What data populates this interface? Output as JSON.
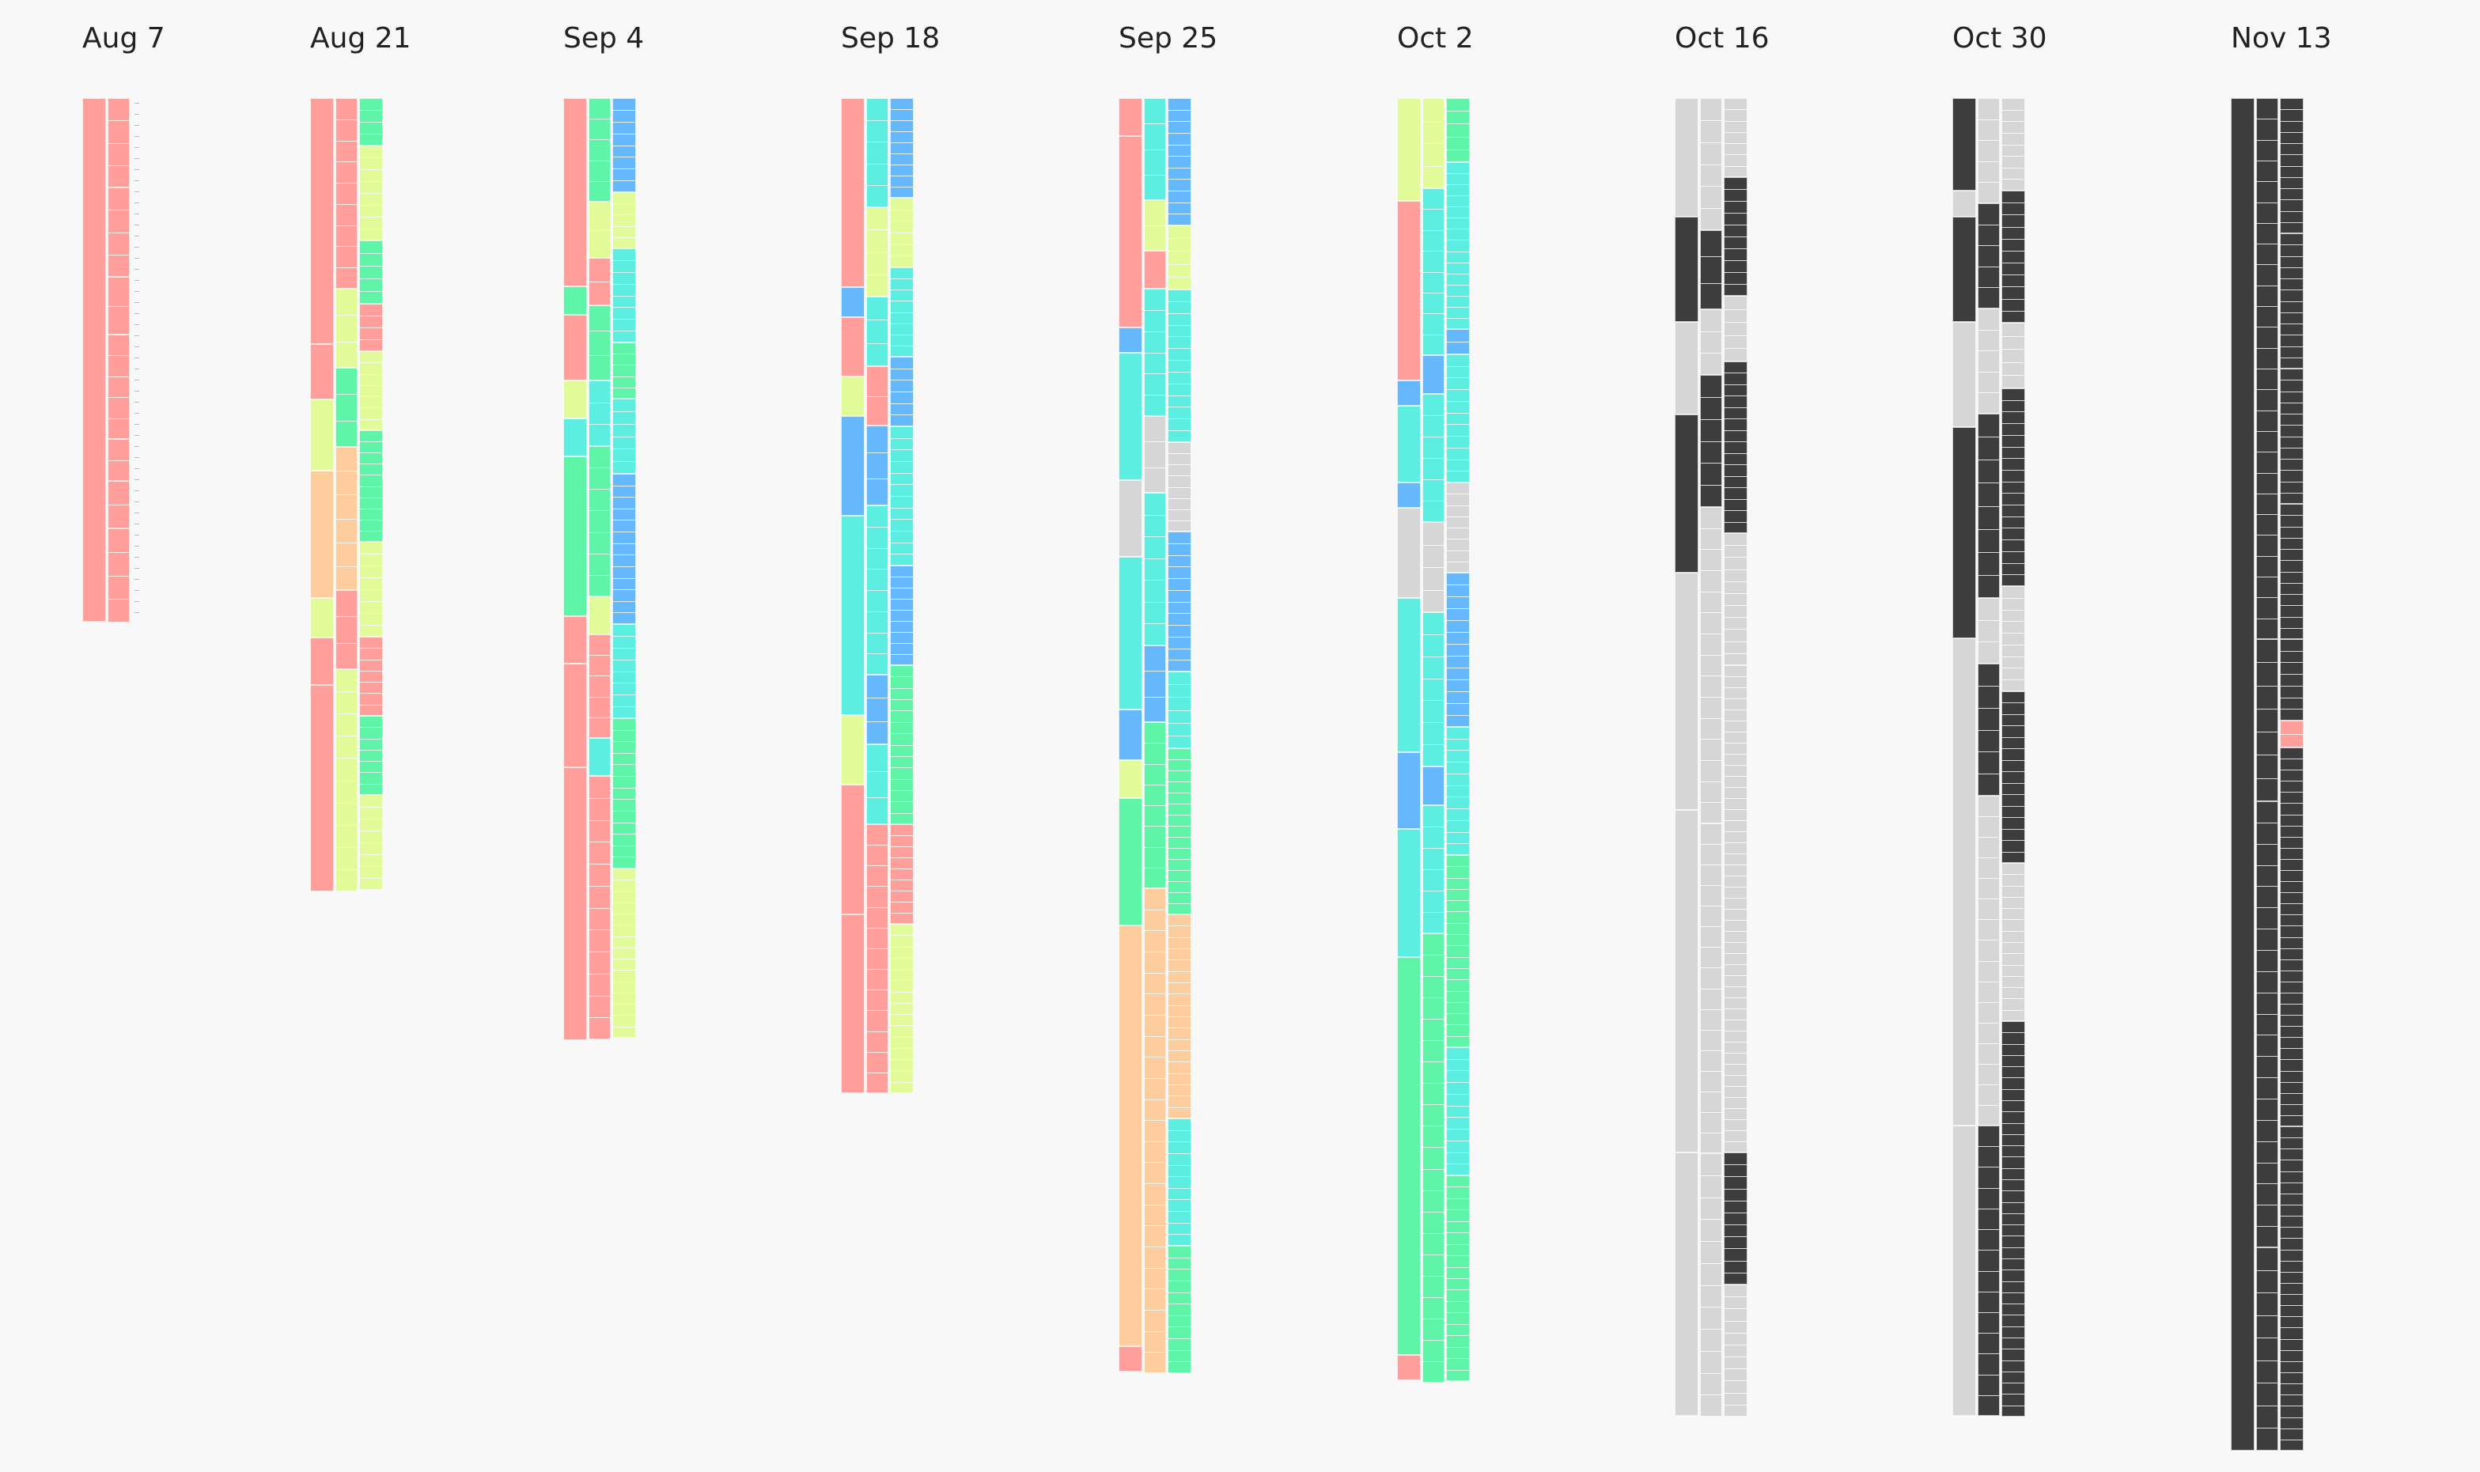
{
  "palette": {
    "red": "#ff9e9b",
    "cyan": "#5deee2",
    "green": "#5ff5a8",
    "blue": "#64b8fb",
    "yellow": "#e2fb99",
    "orange": "#fdcd9d",
    "gray": "#d6d6d6",
    "dark": "#3d3d3d"
  },
  "snapshots": [
    {
      "date": "Aug 7",
      "segments": [
        [
          {
            "c": "red",
            "s": 1
          }
        ],
        [
          {
            "c": "red",
            "s": 0.17
          },
          {
            "c": "red",
            "s": 0.17
          },
          {
            "c": "red",
            "s": 0.11
          },
          {
            "c": "red",
            "s": 0.2
          },
          {
            "c": "red",
            "s": 0.08
          },
          {
            "c": "red",
            "s": 0.09
          },
          {
            "c": "red",
            "s": 0.18
          }
        ],
        [
          {
            "c": "none",
            "s": 1
          }
        ]
      ]
    },
    {
      "date": "Aug 21",
      "segments": [
        [
          {
            "c": "red",
            "s": 0.31
          },
          {
            "c": "red",
            "s": 0.07
          },
          {
            "c": "yellow",
            "s": 0.09
          },
          {
            "c": "orange",
            "s": 0.16
          },
          {
            "c": "yellow",
            "s": 0.05
          },
          {
            "c": "red",
            "s": 0.06
          },
          {
            "c": "red",
            "s": 0.26
          }
        ],
        [
          {
            "c": "red",
            "s": 0.24
          },
          {
            "c": "yellow",
            "s": 0.1
          },
          {
            "c": "green",
            "s": 0.1
          },
          {
            "c": "orange",
            "s": 0.18
          },
          {
            "c": "red",
            "s": 0.1
          },
          {
            "c": "yellow",
            "s": 0.28
          }
        ],
        [
          {
            "c": "green",
            "s": 0.06
          },
          {
            "c": "yellow",
            "s": 0.12
          },
          {
            "c": "green",
            "s": 0.08
          },
          {
            "c": "red",
            "s": 0.06
          },
          {
            "c": "yellow",
            "s": 0.1
          },
          {
            "c": "green",
            "s": 0.14
          },
          {
            "c": "yellow",
            "s": 0.12
          },
          {
            "c": "red",
            "s": 0.1
          },
          {
            "c": "green",
            "s": 0.1
          },
          {
            "c": "yellow",
            "s": 0.12
          }
        ]
      ]
    },
    {
      "date": "Sep 4",
      "segments": [
        [
          {
            "c": "red",
            "s": 0.2
          },
          {
            "c": "green",
            "s": 0.03
          },
          {
            "c": "red",
            "s": 0.07
          },
          {
            "c": "yellow",
            "s": 0.04
          },
          {
            "c": "cyan",
            "s": 0.04
          },
          {
            "c": "green",
            "s": 0.17
          },
          {
            "c": "red",
            "s": 0.05
          },
          {
            "c": "red",
            "s": 0.11
          },
          {
            "c": "red",
            "s": 0.29
          }
        ],
        [
          {
            "c": "green",
            "s": 0.11
          },
          {
            "c": "yellow",
            "s": 0.06
          },
          {
            "c": "red",
            "s": 0.05
          },
          {
            "c": "green",
            "s": 0.08
          },
          {
            "c": "cyan",
            "s": 0.07
          },
          {
            "c": "green",
            "s": 0.16
          },
          {
            "c": "yellow",
            "s": 0.04
          },
          {
            "c": "red",
            "s": 0.11
          },
          {
            "c": "cyan",
            "s": 0.04
          },
          {
            "c": "red",
            "s": 0.28
          }
        ],
        [
          {
            "c": "blue",
            "s": 0.1
          },
          {
            "c": "yellow",
            "s": 0.06
          },
          {
            "c": "cyan",
            "s": 0.1
          },
          {
            "c": "green",
            "s": 0.06
          },
          {
            "c": "cyan",
            "s": 0.08
          },
          {
            "c": "blue",
            "s": 0.16
          },
          {
            "c": "cyan",
            "s": 0.1
          },
          {
            "c": "green",
            "s": 0.16
          },
          {
            "c": "yellow",
            "s": 0.18
          }
        ]
      ]
    },
    {
      "date": "Sep 18",
      "segments": [
        [
          {
            "c": "red",
            "s": 0.19
          },
          {
            "c": "blue",
            "s": 0.03
          },
          {
            "c": "red",
            "s": 0.06
          },
          {
            "c": "yellow",
            "s": 0.04
          },
          {
            "c": "blue",
            "s": 0.1
          },
          {
            "c": "cyan",
            "s": 0.2
          },
          {
            "c": "yellow",
            "s": 0.07
          },
          {
            "c": "red",
            "s": 0.13
          },
          {
            "c": "red",
            "s": 0.18
          }
        ],
        [
          {
            "c": "cyan",
            "s": 0.11
          },
          {
            "c": "yellow",
            "s": 0.09
          },
          {
            "c": "cyan",
            "s": 0.07
          },
          {
            "c": "red",
            "s": 0.06
          },
          {
            "c": "blue",
            "s": 0.08
          },
          {
            "c": "cyan",
            "s": 0.17
          },
          {
            "c": "blue",
            "s": 0.07
          },
          {
            "c": "cyan",
            "s": 0.08
          },
          {
            "c": "red",
            "s": 0.27
          }
        ],
        [
          {
            "c": "blue",
            "s": 0.1
          },
          {
            "c": "yellow",
            "s": 0.07
          },
          {
            "c": "cyan",
            "s": 0.09
          },
          {
            "c": "blue",
            "s": 0.07
          },
          {
            "c": "cyan",
            "s": 0.14
          },
          {
            "c": "blue",
            "s": 0.1
          },
          {
            "c": "green",
            "s": 0.16
          },
          {
            "c": "red",
            "s": 0.1
          },
          {
            "c": "yellow",
            "s": 0.17
          }
        ]
      ]
    },
    {
      "date": "Sep 25",
      "segments": [
        [
          {
            "c": "red",
            "s": 0.03
          },
          {
            "c": "red",
            "s": 0.15
          },
          {
            "c": "blue",
            "s": 0.02
          },
          {
            "c": "cyan",
            "s": 0.1
          },
          {
            "c": "gray",
            "s": 0.06
          },
          {
            "c": "cyan",
            "s": 0.12
          },
          {
            "c": "blue",
            "s": 0.04
          },
          {
            "c": "yellow",
            "s": 0.03
          },
          {
            "c": "green",
            "s": 0.1
          },
          {
            "c": "orange",
            "s": 0.33
          },
          {
            "c": "red",
            "s": 0.02
          }
        ],
        [
          {
            "c": "cyan",
            "s": 0.08
          },
          {
            "c": "yellow",
            "s": 0.04
          },
          {
            "c": "red",
            "s": 0.03
          },
          {
            "c": "cyan",
            "s": 0.1
          },
          {
            "c": "gray",
            "s": 0.06
          },
          {
            "c": "cyan",
            "s": 0.12
          },
          {
            "c": "blue",
            "s": 0.06
          },
          {
            "c": "green",
            "s": 0.13
          },
          {
            "c": "orange",
            "s": 0.38
          }
        ],
        [
          {
            "c": "blue",
            "s": 0.1
          },
          {
            "c": "yellow",
            "s": 0.05
          },
          {
            "c": "cyan",
            "s": 0.12
          },
          {
            "c": "gray",
            "s": 0.07
          },
          {
            "c": "blue",
            "s": 0.11
          },
          {
            "c": "cyan",
            "s": 0.06
          },
          {
            "c": "green",
            "s": 0.13
          },
          {
            "c": "orange",
            "s": 0.16
          },
          {
            "c": "cyan",
            "s": 0.1
          },
          {
            "c": "green",
            "s": 0.1
          }
        ]
      ]
    },
    {
      "date": "Oct 2",
      "segments": [
        [
          {
            "c": "yellow",
            "s": 0.08
          },
          {
            "c": "red",
            "s": 0.14
          },
          {
            "c": "blue",
            "s": 0.02
          },
          {
            "c": "cyan",
            "s": 0.06
          },
          {
            "c": "blue",
            "s": 0.02
          },
          {
            "c": "gray",
            "s": 0.07
          },
          {
            "c": "cyan",
            "s": 0.12
          },
          {
            "c": "blue",
            "s": 0.06
          },
          {
            "c": "cyan",
            "s": 0.1
          },
          {
            "c": "green",
            "s": 0.31
          },
          {
            "c": "red",
            "s": 0.02
          }
        ],
        [
          {
            "c": "yellow",
            "s": 0.07
          },
          {
            "c": "cyan",
            "s": 0.13
          },
          {
            "c": "blue",
            "s": 0.03
          },
          {
            "c": "cyan",
            "s": 0.1
          },
          {
            "c": "gray",
            "s": 0.07
          },
          {
            "c": "cyan",
            "s": 0.12
          },
          {
            "c": "blue",
            "s": 0.03
          },
          {
            "c": "cyan",
            "s": 0.1
          },
          {
            "c": "green",
            "s": 0.35
          }
        ],
        [
          {
            "c": "green",
            "s": 0.05
          },
          {
            "c": "cyan",
            "s": 0.13
          },
          {
            "c": "blue",
            "s": 0.02
          },
          {
            "c": "cyan",
            "s": 0.1
          },
          {
            "c": "gray",
            "s": 0.07
          },
          {
            "c": "blue",
            "s": 0.12
          },
          {
            "c": "cyan",
            "s": 0.1
          },
          {
            "c": "green",
            "s": 0.15
          },
          {
            "c": "cyan",
            "s": 0.1
          },
          {
            "c": "green",
            "s": 0.16
          }
        ]
      ]
    },
    {
      "date": "Oct 16",
      "segments": [
        [
          {
            "c": "gray",
            "s": 0.09
          },
          {
            "c": "dark",
            "s": 0.08
          },
          {
            "c": "gray",
            "s": 0.07
          },
          {
            "c": "dark",
            "s": 0.12
          },
          {
            "c": "gray",
            "s": 0.18
          },
          {
            "c": "gray",
            "s": 0.26
          },
          {
            "c": "gray",
            "s": 0.2
          }
        ],
        [
          {
            "c": "gray",
            "s": 0.1
          },
          {
            "c": "dark",
            "s": 0.06
          },
          {
            "c": "gray",
            "s": 0.05
          },
          {
            "c": "dark",
            "s": 0.1
          },
          {
            "c": "gray",
            "s": 0.24
          },
          {
            "c": "gray",
            "s": 0.25
          },
          {
            "c": "gray",
            "s": 0.2
          }
        ],
        [
          {
            "c": "gray",
            "s": 0.06
          },
          {
            "c": "dark",
            "s": 0.09
          },
          {
            "c": "gray",
            "s": 0.05
          },
          {
            "c": "dark",
            "s": 0.13
          },
          {
            "c": "gray",
            "s": 0.1
          },
          {
            "c": "gray",
            "s": 0.37
          },
          {
            "c": "dark",
            "s": 0.1
          },
          {
            "c": "gray",
            "s": 0.1
          }
        ]
      ]
    },
    {
      "date": "Oct 30",
      "segments": [
        [
          {
            "c": "dark",
            "s": 0.07
          },
          {
            "c": "gray",
            "s": 0.02
          },
          {
            "c": "dark",
            "s": 0.08
          },
          {
            "c": "gray",
            "s": 0.08
          },
          {
            "c": "dark",
            "s": 0.16
          },
          {
            "c": "gray",
            "s": 0.37
          },
          {
            "c": "gray",
            "s": 0.22
          }
        ],
        [
          {
            "c": "gray",
            "s": 0.08
          },
          {
            "c": "dark",
            "s": 0.08
          },
          {
            "c": "gray",
            "s": 0.08
          },
          {
            "c": "dark",
            "s": 0.14
          },
          {
            "c": "gray",
            "s": 0.05
          },
          {
            "c": "dark",
            "s": 0.1
          },
          {
            "c": "gray",
            "s": 0.25
          },
          {
            "c": "dark",
            "s": 0.22
          }
        ],
        [
          {
            "c": "gray",
            "s": 0.07
          },
          {
            "c": "dark",
            "s": 0.1
          },
          {
            "c": "gray",
            "s": 0.05
          },
          {
            "c": "dark",
            "s": 0.15
          },
          {
            "c": "gray",
            "s": 0.08
          },
          {
            "c": "dark",
            "s": 0.13
          },
          {
            "c": "gray",
            "s": 0.12
          },
          {
            "c": "dark",
            "s": 0.3
          }
        ]
      ]
    },
    {
      "date": "Nov 13",
      "segments": [
        [
          {
            "c": "dark",
            "s": 1
          }
        ],
        [
          {
            "c": "dark",
            "s": 0.4
          },
          {
            "c": "dark",
            "s": 0.12
          },
          {
            "c": "dark",
            "s": 0.33
          },
          {
            "c": "dark",
            "s": 0.15
          }
        ],
        [
          {
            "c": "dark",
            "s": 0.1
          },
          {
            "c": "dark",
            "s": 0.1
          },
          {
            "c": "dark",
            "s": 0.1
          },
          {
            "c": "dark",
            "s": 0.1
          },
          {
            "c": "dark",
            "s": 0.06
          },
          {
            "c": "red",
            "s": 0.02
          },
          {
            "c": "dark",
            "s": 0.28
          },
          {
            "c": "dark",
            "s": 0.24
          }
        ]
      ]
    }
  ]
}
